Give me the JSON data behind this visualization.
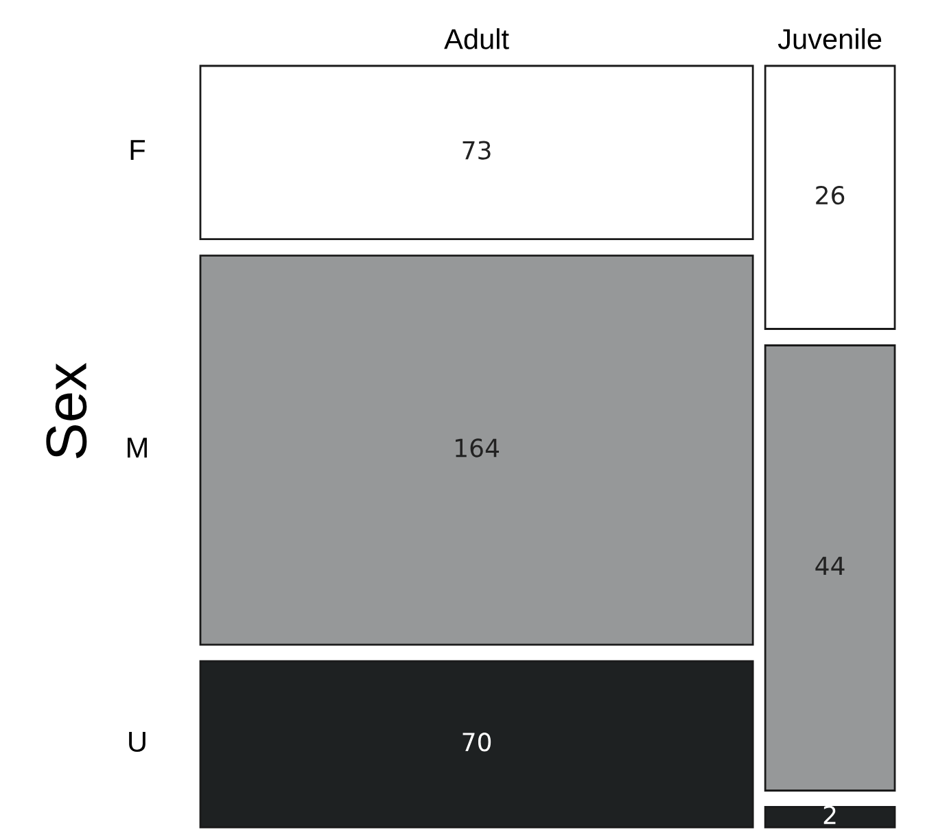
{
  "chart_data": {
    "type": "other",
    "ylabel": "Sex",
    "categories": [
      "Adult",
      "Juvenile"
    ],
    "series": [
      {
        "name": "F",
        "color": "#ffffff",
        "values": [
          73,
          26
        ]
      },
      {
        "name": "M",
        "color": "#969899",
        "values": [
          164,
          44
        ]
      },
      {
        "name": "U",
        "color": "#1e2122",
        "values": [
          70,
          2
        ]
      }
    ],
    "data_labels": true
  }
}
